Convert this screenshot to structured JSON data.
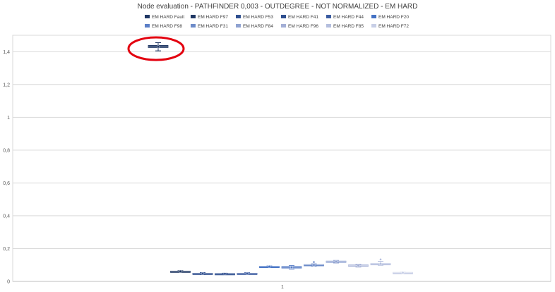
{
  "chart_data": {
    "type": "box",
    "title": "Node evaluation - PATHFINDER 0,003 - OUTDEGREE - NOT NORMALIZED - EM HARD",
    "xlabel": "",
    "ylabel": "",
    "categories": [
      "1"
    ],
    "ylim": [
      0,
      1.5
    ],
    "yticks": [
      0,
      0.2,
      0.4,
      0.6,
      0.8,
      1,
      1.2,
      1.4
    ],
    "ytick_labels": [
      "0",
      "0,2",
      "0,4",
      "0,6",
      "0,8",
      "1",
      "1,2",
      "1,4"
    ],
    "grid": true,
    "legend_position": "top",
    "series": [
      {
        "name": "EM HARD Fault",
        "color": "#203864",
        "min": 1.405,
        "q1": 1.425,
        "median": 1.43,
        "q3": 1.438,
        "max": 1.455
      },
      {
        "name": "EM HARD F97",
        "color": "#203864",
        "min": 0.058,
        "q1": 0.058,
        "median": 0.061,
        "q3": 0.063,
        "max": 0.065
      },
      {
        "name": "EM HARD F53",
        "color": "#2F4F8F",
        "min": 0.042,
        "q1": 0.045,
        "median": 0.048,
        "q3": 0.05,
        "max": 0.054
      },
      {
        "name": "EM HARD F41",
        "color": "#2F4F8F",
        "min": 0.042,
        "q1": 0.044,
        "median": 0.046,
        "q3": 0.048,
        "max": 0.05
      },
      {
        "name": "EM HARD F44",
        "color": "#3A5BA0",
        "min": 0.043,
        "q1": 0.045,
        "median": 0.048,
        "q3": 0.05,
        "max": 0.053
      },
      {
        "name": "EM HARD F20",
        "color": "#4472C4",
        "min": 0.085,
        "q1": 0.087,
        "median": 0.09,
        "q3": 0.092,
        "max": 0.094
      },
      {
        "name": "EM HARD F98",
        "color": "#5B7FC7",
        "min": 0.075,
        "q1": 0.081,
        "median": 0.086,
        "q3": 0.091,
        "max": 0.097
      },
      {
        "name": "EM HARD F31",
        "color": "#6D8BC9",
        "min": 0.093,
        "q1": 0.096,
        "median": 0.1,
        "q3": 0.103,
        "max": 0.107,
        "outliers": [
          0.118
        ]
      },
      {
        "name": "EM HARD F84",
        "color": "#8FA2D1",
        "min": 0.112,
        "q1": 0.117,
        "median": 0.121,
        "q3": 0.124,
        "max": 0.128
      },
      {
        "name": "EM HARD F96",
        "color": "#A3AFD6",
        "min": 0.087,
        "q1": 0.093,
        "median": 0.097,
        "q3": 0.101,
        "max": 0.105
      },
      {
        "name": "EM HARD F85",
        "color": "#B4BEDE",
        "min": 0.098,
        "q1": 0.104,
        "median": 0.107,
        "q3": 0.109,
        "max": 0.122,
        "outliers": [
          0.134
        ]
      },
      {
        "name": "EM HARD F72",
        "color": "#C7CEE6",
        "min": 0.05,
        "q1": 0.051,
        "median": 0.053,
        "q3": 0.055,
        "max": 0.056
      }
    ]
  }
}
